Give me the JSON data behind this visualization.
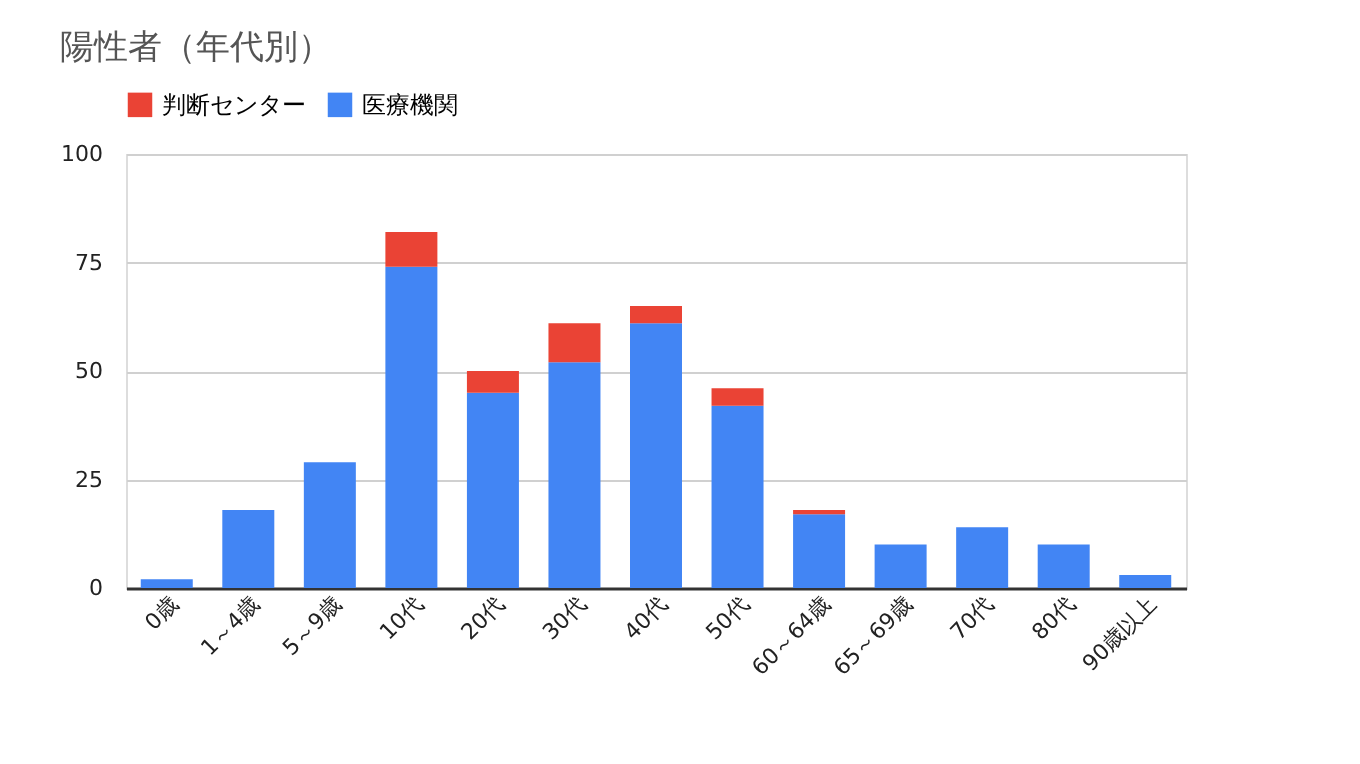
{
  "chart_data": {
    "type": "bar",
    "title": "陽性者（年代別）",
    "stacked": true,
    "categories": [
      "0歳",
      "1～4歳",
      "5～9歳",
      "10代",
      "20代",
      "30代",
      "40代",
      "50代",
      "60～64歳",
      "65～69歳",
      "70代",
      "80代",
      "90歳以上"
    ],
    "series": [
      {
        "name": "医療機関",
        "color": "#4285f4",
        "values": [
          2,
          18,
          29,
          74,
          45,
          52,
          61,
          42,
          17,
          10,
          14,
          10,
          3
        ]
      },
      {
        "name": "判断センター",
        "color": "#ea4335",
        "values": [
          0,
          0,
          0,
          8,
          5,
          9,
          4,
          4,
          1,
          0,
          0,
          0,
          0
        ]
      }
    ],
    "ylim": [
      0,
      100
    ],
    "yticks": [
      0,
      25,
      50,
      75,
      100
    ],
    "grid": "y",
    "legend": "top"
  }
}
